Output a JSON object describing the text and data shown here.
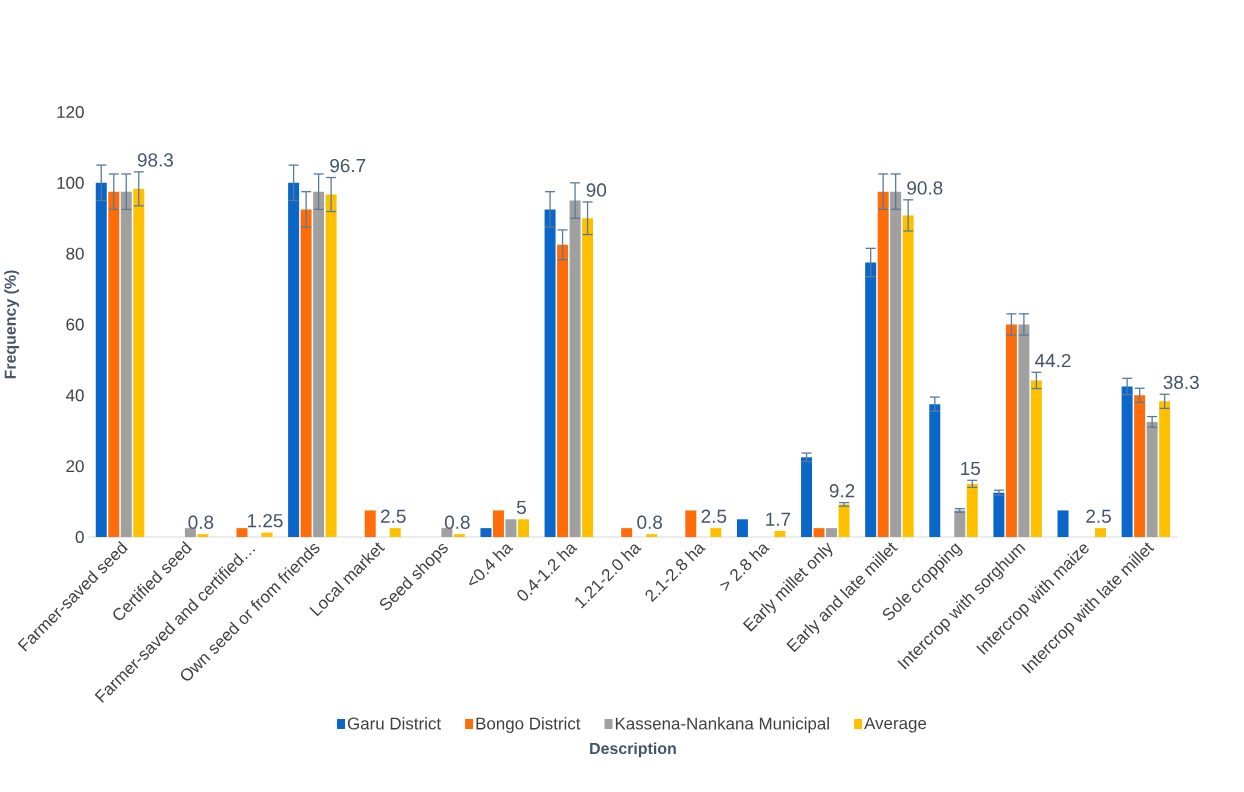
{
  "chart_data": {
    "type": "bar",
    "xlabel": "Description",
    "ylabel": "Frequency (%)",
    "categories": [
      "Farmer-saved seed",
      "Certified seed",
      "Farmer-saved and certified…",
      "Own seed or from friends",
      "Local market",
      "Seed shops",
      "<0.4 ha",
      "0.4-1.2 ha",
      "1.21-2.0 ha",
      "2.1-2.8 ha",
      "> 2.8 ha",
      "Early millet only",
      "Early and late millet",
      "Sole cropping",
      "Intercrop with sorghum",
      "Intercrop with maize",
      "Intercrop with late millet"
    ],
    "series": [
      {
        "name": "Garu District",
        "color": "#0a66c8",
        "values": [
          100,
          0,
          0,
          100,
          0,
          0,
          2.5,
          92.5,
          0,
          0,
          5,
          22.5,
          77.5,
          37.5,
          12.5,
          7.5,
          42.5
        ],
        "errors": [
          5,
          null,
          null,
          5,
          null,
          null,
          null,
          5,
          null,
          null,
          null,
          1.2,
          4,
          2,
          0.7,
          null,
          2.3
        ]
      },
      {
        "name": "Bongo District",
        "color": "#ff6d0a",
        "values": [
          97.5,
          0,
          2.5,
          92.5,
          7.5,
          0,
          7.5,
          82.5,
          2.5,
          7.5,
          0,
          2.5,
          97.5,
          0,
          60,
          0,
          40
        ],
        "errors": [
          5,
          null,
          null,
          5,
          null,
          null,
          null,
          4.2,
          null,
          null,
          null,
          null,
          5,
          null,
          3,
          null,
          2
        ]
      },
      {
        "name": "Kassena-Nankana Municipal",
        "color": "#a0a0a0",
        "values": [
          97.5,
          2.5,
          0,
          97.5,
          0,
          2.5,
          5,
          95,
          0,
          0,
          0,
          2.5,
          97.5,
          7.5,
          60,
          0,
          32.5
        ],
        "errors": [
          5,
          null,
          null,
          5,
          null,
          null,
          null,
          5,
          null,
          null,
          null,
          null,
          5,
          0.5,
          3,
          null,
          1.5
        ]
      },
      {
        "name": "Average",
        "color": "#ffc000",
        "values": [
          98.3,
          0.8,
          1.25,
          96.7,
          2.5,
          0.8,
          5,
          90,
          0.8,
          2.5,
          1.7,
          9.2,
          90.8,
          15,
          44.2,
          2.5,
          38.3
        ],
        "errors": [
          4.8,
          null,
          null,
          4.8,
          null,
          null,
          null,
          4.6,
          null,
          null,
          null,
          0.5,
          4.4,
          1,
          2.3,
          null,
          2
        ],
        "value_labels": [
          "98.3",
          "0.8",
          "1.25",
          "96.7",
          "2.5",
          "0.8",
          "5",
          "90",
          "0.8",
          "2.5",
          "1.7",
          "9.2",
          "90.8",
          "15",
          "44.2",
          "2.5",
          "38.3"
        ]
      }
    ],
    "ylim": [
      0,
      120
    ],
    "yticks": [
      0,
      20,
      40,
      60,
      80,
      100,
      120
    ],
    "grid": false,
    "legend": "bottom"
  }
}
